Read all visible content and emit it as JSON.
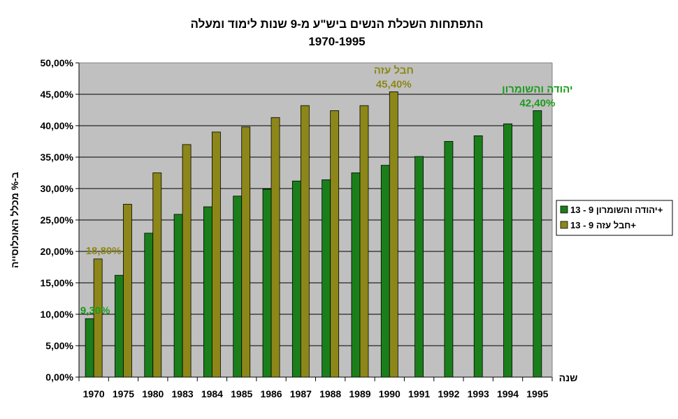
{
  "chart_data": {
    "type": "bar",
    "title": "התפתחות השכלת הנשים ביש\"ע מ-9 שנות לימוד ומעלה",
    "subtitle": "1970-1995",
    "xlabel": "שנה",
    "ylabel": "ב-% מכלל האוכלוסייה",
    "ylim": [
      0,
      50
    ],
    "ytick_labels": [
      "0,00%",
      "5,00%",
      "10,00%",
      "15,00%",
      "20,00%",
      "25,00%",
      "30,00%",
      "35,00%",
      "40,00%",
      "45,00%",
      "50,00%"
    ],
    "grid": true,
    "legend_position": "right",
    "categories": [
      "1970",
      "1975",
      "1980",
      "1983",
      "1984",
      "1985",
      "1986",
      "1987",
      "1988",
      "1989",
      "1990",
      "1991",
      "1992",
      "1993",
      "1994",
      "1995"
    ],
    "series": [
      {
        "name": "יהודה והשומרון  9 - 13+",
        "color": "#1a7f1a",
        "values": [
          9.3,
          16.2,
          22.9,
          25.9,
          27.1,
          28.8,
          29.9,
          31.2,
          31.4,
          32.5,
          33.7,
          35.1,
          37.5,
          38.4,
          40.3,
          42.4
        ]
      },
      {
        "name": "חבל עזה   9 - 13+",
        "color": "#8c8718",
        "values": [
          18.8,
          27.5,
          32.5,
          37.0,
          39.0,
          39.8,
          41.3,
          43.2,
          42.4,
          43.2,
          45.4,
          null,
          null,
          null,
          null,
          null
        ]
      }
    ],
    "annotations": [
      {
        "text": "18,80%",
        "series": 1,
        "index": 0,
        "color": "#8c8718"
      },
      {
        "text": "9,30%",
        "series": 0,
        "index": 0,
        "color": "#1a9a1a"
      },
      {
        "text": "חבל עזה",
        "series": 1,
        "index": 10,
        "color": "#8c8718",
        "line": 1
      },
      {
        "text": "45,40%",
        "series": 1,
        "index": 10,
        "color": "#8c8718",
        "line": 2
      },
      {
        "text": "יהודה והשומרון",
        "series": 0,
        "index": 15,
        "color": "#1a9a1a",
        "line": 1
      },
      {
        "text": "42,40%",
        "series": 0,
        "index": 15,
        "color": "#1a9a1a",
        "line": 2
      }
    ],
    "plot_background": "#c0c0c0"
  }
}
